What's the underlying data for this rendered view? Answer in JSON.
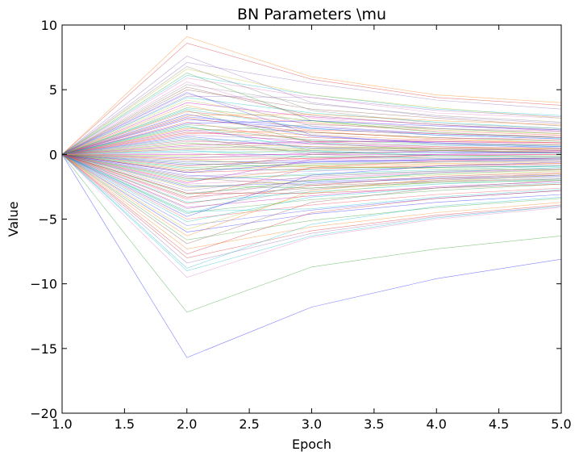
{
  "chart_data": {
    "type": "line",
    "title": "BN Parameters \\mu",
    "xlabel": "Epoch",
    "ylabel": "Value",
    "xlim": [
      1.0,
      5.0
    ],
    "ylim": [
      -20,
      10
    ],
    "x": [
      1,
      2,
      3,
      4,
      5
    ],
    "x_ticks": [
      "1.0",
      "1.5",
      "2.0",
      "2.5",
      "3.0",
      "3.5",
      "4.0",
      "4.5",
      "5.0"
    ],
    "y_ticks": [
      "10",
      "5",
      "0",
      "−5",
      "−10",
      "−15",
      "−20"
    ],
    "grid": false,
    "legend": "none",
    "series_colors": [
      "#1f1fff",
      "#2ca02c",
      "#ff7f0e",
      "#d62728",
      "#9467bd",
      "#17becf",
      "#e377c2",
      "#bcbd22",
      "#7f7f7f",
      "#8c564b",
      "#00bfbf",
      "#bf00bf",
      "#40a040",
      "#ff4040",
      "#4040ff"
    ],
    "series": [
      {
        "values": [
          0,
          -15.7,
          -11.8,
          -9.6,
          -8.1
        ]
      },
      {
        "values": [
          0,
          -12.2,
          -8.7,
          -7.3,
          -6.3
        ]
      },
      {
        "values": [
          0,
          9.1,
          6.0,
          4.6,
          4.0
        ]
      },
      {
        "values": [
          0,
          8.6,
          5.8,
          4.4,
          3.8
        ]
      },
      {
        "values": [
          0,
          7.1,
          5.5,
          4.2,
          3.5
        ]
      },
      {
        "values": [
          0,
          6.1,
          4.6,
          3.5,
          3.0
        ]
      },
      {
        "values": [
          0,
          5.9,
          4.4,
          3.2,
          2.8
        ]
      },
      {
        "values": [
          0,
          6.6,
          4.6,
          3.6,
          2.8
        ]
      },
      {
        "values": [
          0,
          5.4,
          3.9,
          3.0,
          2.5
        ]
      },
      {
        "values": [
          0,
          5.0,
          3.5,
          2.8,
          2.2
        ]
      },
      {
        "values": [
          0,
          4.4,
          3.2,
          2.5,
          2.0
        ]
      },
      {
        "values": [
          0,
          4.0,
          2.9,
          2.3,
          1.8
        ]
      },
      {
        "values": [
          0,
          3.6,
          2.6,
          2.0,
          1.6
        ]
      },
      {
        "values": [
          0,
          3.3,
          2.4,
          1.8,
          1.5
        ]
      },
      {
        "values": [
          0,
          2.9,
          2.1,
          1.6,
          1.3
        ]
      },
      {
        "values": [
          0,
          2.7,
          2.0,
          1.5,
          1.2
        ]
      },
      {
        "values": [
          0,
          2.3,
          1.7,
          1.3,
          1.0
        ]
      },
      {
        "values": [
          0,
          2.0,
          1.5,
          1.1,
          0.9
        ]
      },
      {
        "values": [
          0,
          1.7,
          1.3,
          1.0,
          0.8
        ]
      },
      {
        "values": [
          0,
          1.5,
          1.1,
          0.9,
          0.7
        ]
      },
      {
        "values": [
          0,
          1.2,
          0.9,
          0.7,
          0.6
        ]
      },
      {
        "values": [
          0,
          1.0,
          0.8,
          0.6,
          0.5
        ]
      },
      {
        "values": [
          0,
          0.8,
          0.6,
          0.5,
          0.4
        ]
      },
      {
        "values": [
          0,
          0.6,
          0.5,
          0.4,
          0.3
        ]
      },
      {
        "values": [
          0,
          0.4,
          0.3,
          0.3,
          0.2
        ]
      },
      {
        "values": [
          0,
          0.2,
          0.2,
          0.1,
          0.1
        ]
      },
      {
        "values": [
          0,
          0.0,
          0.0,
          0.0,
          0.0
        ]
      },
      {
        "values": [
          0,
          -0.2,
          -0.2,
          -0.1,
          -0.1
        ]
      },
      {
        "values": [
          0,
          -0.4,
          -0.3,
          -0.3,
          -0.2
        ]
      },
      {
        "values": [
          0,
          -0.6,
          -0.5,
          -0.4,
          -0.3
        ]
      },
      {
        "values": [
          0,
          -0.8,
          -0.6,
          -0.5,
          -0.4
        ]
      },
      {
        "values": [
          0,
          -1.0,
          -0.8,
          -0.6,
          -0.5
        ]
      },
      {
        "values": [
          0,
          -1.2,
          -0.9,
          -0.7,
          -0.6
        ]
      },
      {
        "values": [
          0,
          -1.4,
          -1.1,
          -0.9,
          -0.7
        ]
      },
      {
        "values": [
          0,
          -1.7,
          -1.3,
          -1.0,
          -0.8
        ]
      },
      {
        "values": [
          0,
          -2.0,
          -1.5,
          -1.2,
          -0.9
        ]
      },
      {
        "values": [
          0,
          -2.3,
          -1.8,
          -1.4,
          -1.1
        ]
      },
      {
        "values": [
          0,
          -2.6,
          -2.0,
          -1.6,
          -1.3
        ]
      },
      {
        "values": [
          0,
          -3.0,
          -2.3,
          -1.8,
          -1.5
        ]
      },
      {
        "values": [
          0,
          -3.3,
          -2.6,
          -2.0,
          -1.6
        ]
      },
      {
        "values": [
          0,
          -3.7,
          -2.9,
          -2.3,
          -1.9
        ]
      },
      {
        "values": [
          0,
          -4.1,
          -3.2,
          -2.5,
          -2.1
        ]
      },
      {
        "values": [
          0,
          -4.5,
          -3.5,
          -2.8,
          -2.3
        ]
      },
      {
        "values": [
          0,
          -5.0,
          -3.9,
          -3.1,
          -2.6
        ]
      },
      {
        "values": [
          0,
          -5.5,
          -4.3,
          -3.4,
          -2.8
        ]
      },
      {
        "values": [
          0,
          -6.0,
          -4.6,
          -3.7,
          -3.1
        ]
      },
      {
        "values": [
          0,
          -6.6,
          -5.1,
          -4.1,
          -3.4
        ]
      },
      {
        "values": [
          0,
          -7.3,
          -5.6,
          -4.5,
          -3.7
        ]
      },
      {
        "values": [
          0,
          -8.0,
          -5.9,
          -4.7,
          -3.9
        ]
      },
      {
        "values": [
          0,
          -8.4,
          -6.1,
          -4.8,
          -4.0
        ]
      },
      {
        "values": [
          0,
          -9.0,
          -6.3,
          -4.9,
          -4.0
        ]
      },
      {
        "values": [
          0,
          -9.5,
          -6.4,
          -5.0,
          -4.1
        ]
      },
      {
        "values": [
          0,
          0.5,
          0.4,
          0.3,
          0.2
        ]
      },
      {
        "values": [
          0,
          -0.5,
          -0.7,
          -0.6,
          -0.5
        ]
      },
      {
        "values": [
          0,
          1.1,
          0.6,
          0.4,
          0.3
        ]
      },
      {
        "values": [
          0,
          -1.1,
          -1.2,
          -1.0,
          -0.9
        ]
      },
      {
        "values": [
          0,
          1.9,
          0.8,
          0.5,
          0.3
        ]
      },
      {
        "values": [
          0,
          -1.9,
          -1.6,
          -1.3,
          -1.1
        ]
      },
      {
        "values": [
          0,
          2.5,
          1.0,
          0.6,
          0.4
        ]
      },
      {
        "values": [
          0,
          -2.5,
          -2.2,
          -1.9,
          -1.7
        ]
      },
      {
        "values": [
          0,
          3.1,
          1.4,
          0.9,
          0.6
        ]
      },
      {
        "values": [
          0,
          -3.1,
          -2.0,
          -1.5,
          -1.2
        ]
      },
      {
        "values": [
          0,
          3.8,
          1.8,
          1.2,
          0.9
        ]
      },
      {
        "values": [
          0,
          -3.8,
          -2.4,
          -1.7,
          -1.4
        ]
      },
      {
        "values": [
          0,
          4.7,
          2.2,
          1.6,
          1.3
        ]
      },
      {
        "values": [
          0,
          -4.6,
          -2.1,
          -1.4,
          -1.0
        ]
      },
      {
        "values": [
          0,
          5.6,
          2.8,
          2.0,
          1.7
        ]
      },
      {
        "values": [
          0,
          -5.8,
          -3.0,
          -2.1,
          -1.6
        ]
      },
      {
        "values": [
          0,
          6.8,
          3.4,
          2.4,
          2.0
        ]
      },
      {
        "values": [
          0,
          -6.9,
          -3.7,
          -2.6,
          -2.0
        ]
      },
      {
        "values": [
          0,
          0.3,
          -0.2,
          -0.3,
          -0.3
        ]
      },
      {
        "values": [
          0,
          -0.3,
          0.1,
          0.2,
          0.2
        ]
      },
      {
        "values": [
          0,
          0.9,
          0.2,
          -0.1,
          -0.2
        ]
      },
      {
        "values": [
          0,
          -0.9,
          -0.3,
          -0.1,
          0.0
        ]
      },
      {
        "values": [
          0,
          1.4,
          0.5,
          0.2,
          0.1
        ]
      },
      {
        "values": [
          0,
          -1.4,
          -0.6,
          -0.4,
          -0.3
        ]
      },
      {
        "values": [
          0,
          2.1,
          1.1,
          0.8,
          0.7
        ]
      },
      {
        "values": [
          0,
          -2.1,
          -1.1,
          -0.8,
          -0.7
        ]
      },
      {
        "values": [
          0,
          2.8,
          1.7,
          1.3,
          1.1
        ]
      },
      {
        "values": [
          0,
          -2.8,
          -1.7,
          -1.3,
          -1.1
        ]
      },
      {
        "values": [
          0,
          3.5,
          2.0,
          1.5,
          1.2
        ]
      },
      {
        "values": [
          0,
          -3.5,
          -1.9,
          -1.4,
          -1.2
        ]
      },
      {
        "values": [
          0,
          4.2,
          2.5,
          1.9,
          1.6
        ]
      },
      {
        "values": [
          0,
          -4.2,
          -2.7,
          -2.1,
          -1.8
        ]
      },
      {
        "values": [
          0,
          5.2,
          3.0,
          2.3,
          1.9
        ]
      },
      {
        "values": [
          0,
          -5.2,
          -3.3,
          -2.6,
          -2.2
        ]
      },
      {
        "values": [
          0,
          0.7,
          1.0,
          1.0,
          0.9
        ]
      },
      {
        "values": [
          0,
          -0.7,
          -1.0,
          -1.0,
          -0.9
        ]
      },
      {
        "values": [
          0,
          1.6,
          1.9,
          1.6,
          1.4
        ]
      },
      {
        "values": [
          0,
          -1.6,
          -2.1,
          -1.8,
          -1.6
        ]
      },
      {
        "values": [
          0,
          2.4,
          2.6,
          2.2,
          1.9
        ]
      },
      {
        "values": [
          0,
          -2.4,
          -2.6,
          -2.2,
          -2.0
        ]
      },
      {
        "values": [
          0,
          3.0,
          3.1,
          2.6,
          2.3
        ]
      },
      {
        "values": [
          0,
          -3.0,
          -3.0,
          -2.6,
          -2.3
        ]
      },
      {
        "values": [
          0,
          4.5,
          4.4,
          3.4,
          2.9
        ]
      },
      {
        "values": [
          0,
          -4.4,
          -4.2,
          -3.3,
          -2.7
        ]
      },
      {
        "values": [
          0,
          0.1,
          -0.4,
          -0.5,
          -0.5
        ]
      },
      {
        "values": [
          0,
          -0.1,
          0.4,
          0.5,
          0.5
        ]
      },
      {
        "values": [
          0,
          1.3,
          0.0,
          -0.3,
          -0.4
        ]
      },
      {
        "values": [
          0,
          -1.3,
          0.0,
          0.3,
          0.4
        ]
      },
      {
        "values": [
          0,
          2.2,
          0.3,
          -0.1,
          -0.2
        ]
      },
      {
        "values": [
          0,
          -2.2,
          -0.4,
          0.0,
          0.2
        ]
      },
      {
        "values": [
          0,
          3.4,
          0.9,
          0.3,
          0.1
        ]
      },
      {
        "values": [
          0,
          -3.4,
          -1.0,
          -0.5,
          -0.3
        ]
      },
      {
        "values": [
          0,
          4.8,
          1.5,
          0.8,
          0.5
        ]
      },
      {
        "values": [
          0,
          -4.8,
          -1.6,
          -0.9,
          -0.6
        ]
      },
      {
        "values": [
          0,
          6.3,
          2.6,
          1.7,
          1.3
        ]
      },
      {
        "values": [
          0,
          -6.3,
          -2.8,
          -1.9,
          -1.5
        ]
      },
      {
        "values": [
          0,
          -7.7,
          -4.5,
          -3.4,
          -2.8
        ]
      },
      {
        "values": [
          0,
          7.6,
          4.0,
          2.9,
          2.4
        ]
      },
      {
        "values": [
          0,
          -8.8,
          -5.4,
          -4.0,
          -3.3
        ]
      },
      {
        "values": [
          0,
          0.4,
          0.9,
          1.2,
          1.3
        ]
      },
      {
        "values": [
          0,
          -0.4,
          -0.9,
          -1.1,
          -1.2
        ]
      },
      {
        "values": [
          0,
          1.8,
          2.3,
          2.0,
          1.8
        ]
      },
      {
        "values": [
          0,
          -1.8,
          -2.4,
          -2.1,
          -1.9
        ]
      }
    ]
  }
}
